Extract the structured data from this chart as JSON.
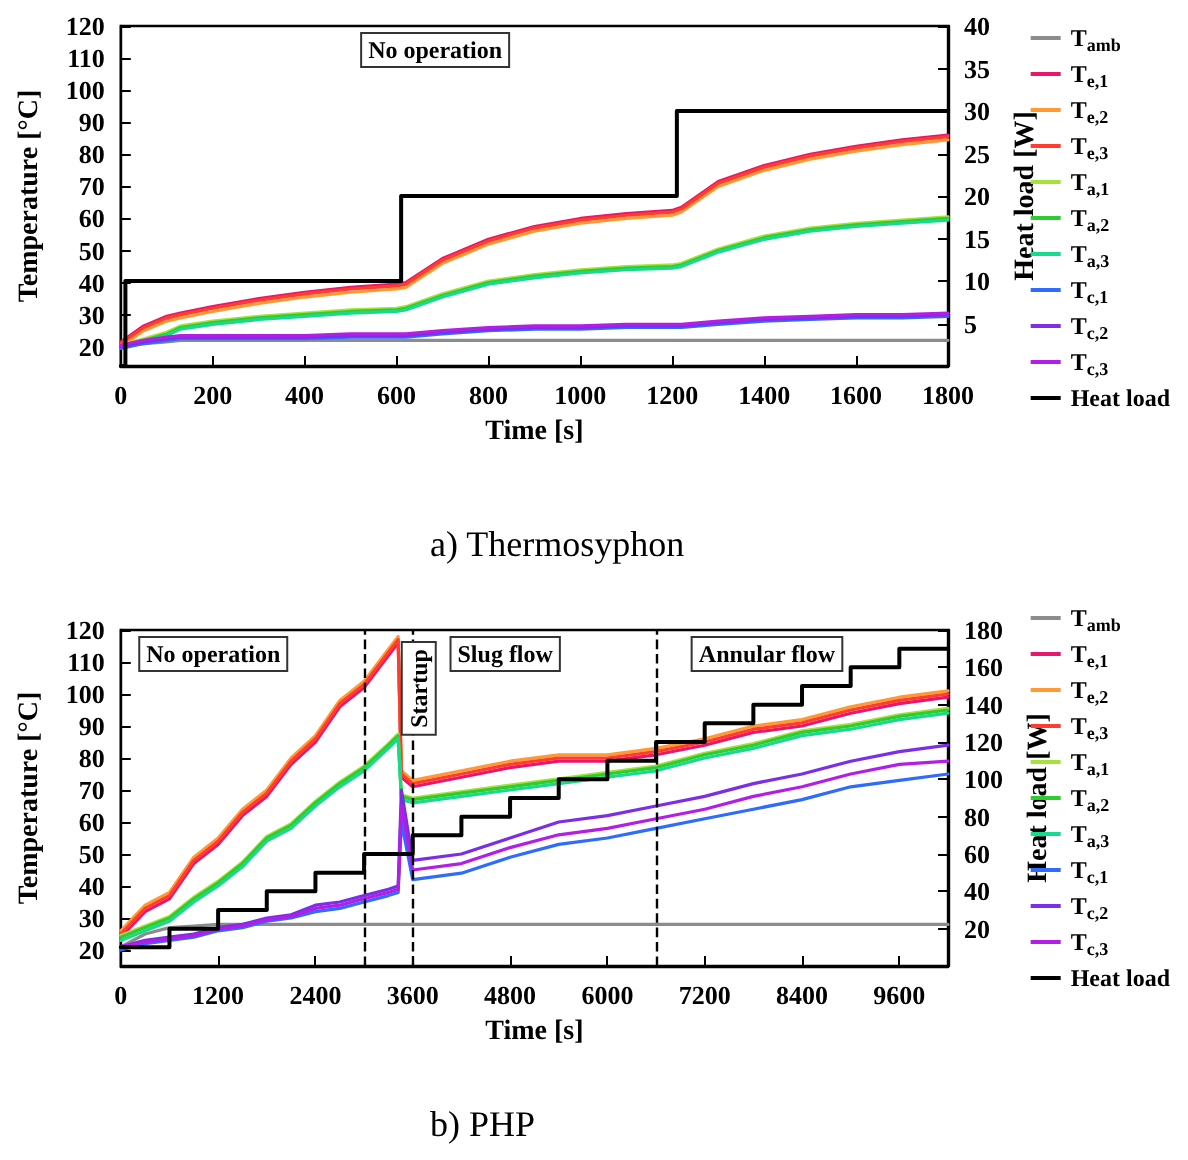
{
  "chart_data": [
    {
      "type": "line",
      "title": "a) Thermosyphon",
      "xlabel": "Time [s]",
      "ylabel": "Temperature [°C]",
      "y2label": "Heat load [W]",
      "xlim": [
        0,
        1800
      ],
      "xticks": [
        0,
        200,
        400,
        600,
        800,
        1000,
        1200,
        1400,
        1600,
        1800
      ],
      "ylim": [
        14,
        120
      ],
      "yticks": [
        20,
        30,
        40,
        50,
        60,
        70,
        80,
        90,
        100,
        110,
        120
      ],
      "y2lim": [
        0,
        40
      ],
      "y2ticks": [
        5,
        10,
        15,
        20,
        25,
        30,
        35,
        40
      ],
      "grid": false,
      "legend": "right",
      "marker": "none",
      "line_style": "solid",
      "annotations": [
        "No operation"
      ],
      "x": [
        0,
        50,
        100,
        130,
        200,
        300,
        400,
        500,
        600,
        620,
        700,
        800,
        900,
        1000,
        1100,
        1200,
        1220,
        1300,
        1400,
        1500,
        1600,
        1700,
        1800
      ],
      "series": [
        {
          "name": "T$_{amb}$",
          "color": "#8c8c8c",
          "values": [
            20,
            21,
            21.5,
            22,
            22,
            22,
            22,
            22,
            22,
            22,
            22,
            22,
            22,
            22,
            22,
            22,
            22,
            22,
            22,
            22,
            22,
            22,
            22
          ]
        },
        {
          "name": "T$_{e,1}$",
          "color": "#e8176b",
          "values": [
            21.5,
            26.5,
            29.5,
            30.5,
            32.5,
            35,
            37,
            38.5,
            39.5,
            40,
            47.5,
            53.5,
            57.5,
            60,
            61.5,
            62.5,
            63.5,
            71.5,
            76.5,
            80,
            82.5,
            84.5,
            86
          ]
        },
        {
          "name": "T$_{e,2}$",
          "color": "#ff9933",
          "values": [
            20,
            25,
            28,
            29,
            31,
            33.5,
            35.5,
            37,
            38,
            38.5,
            46,
            52,
            56,
            58.5,
            60,
            61,
            62,
            70,
            75,
            78.5,
            81,
            83,
            84.5
          ]
        },
        {
          "name": "T$_{e,3}$",
          "color": "#ff3c2e",
          "values": [
            21,
            26,
            29,
            30,
            32,
            34.5,
            36.5,
            38,
            39,
            39.5,
            47,
            53,
            57,
            59.5,
            61,
            62,
            63,
            71,
            76,
            79.5,
            82,
            84,
            85.5
          ]
        },
        {
          "name": "T$_{a,1}$",
          "color": "#a6e23c",
          "values": [
            20.5,
            22.5,
            24.5,
            26.5,
            28,
            29.5,
            30.5,
            31.5,
            32,
            32.5,
            36.5,
            40.5,
            42.5,
            44,
            45,
            45.5,
            46,
            50.5,
            54.5,
            57,
            58.5,
            59.5,
            60.5
          ]
        },
        {
          "name": "T$_{a,2}$",
          "color": "#2ecc2e",
          "values": [
            20,
            22,
            24,
            26,
            27.5,
            29,
            30,
            31,
            31.5,
            32,
            36,
            40,
            42,
            43.5,
            44.5,
            45,
            45.5,
            50,
            54,
            56.5,
            58,
            59,
            60
          ]
        },
        {
          "name": "T$_{a,3}$",
          "color": "#19d98c",
          "values": [
            19.5,
            21.5,
            23.5,
            25.5,
            27,
            28.5,
            29.5,
            30.5,
            31,
            31.5,
            35.5,
            39.5,
            41.5,
            43,
            44,
            44.5,
            45,
            49.5,
            53.5,
            56,
            57.5,
            58.5,
            59.5
          ]
        },
        {
          "name": "T$_{c,1}$",
          "color": "#2e6bff",
          "values": [
            19.5,
            21,
            22,
            22.5,
            22.5,
            22.5,
            22.5,
            23,
            23,
            23,
            24,
            25,
            25.5,
            25.5,
            26,
            26,
            26,
            27,
            28,
            28.5,
            29,
            29,
            29.5
          ]
        },
        {
          "name": "T$_{c,2}$",
          "color": "#7b2ee6",
          "values": [
            20,
            21.5,
            22.5,
            23,
            23,
            23,
            23,
            23.5,
            23.5,
            23.5,
            24.5,
            25.5,
            26,
            26,
            26.5,
            26.5,
            26.5,
            27.5,
            28.5,
            29,
            29.5,
            29.5,
            30
          ]
        },
        {
          "name": "T$_{c,3}$",
          "color": "#b31ee6",
          "values": [
            20.5,
            22,
            23,
            23.5,
            23.5,
            23.5,
            23.5,
            24,
            24,
            24,
            25,
            26,
            26.5,
            26.5,
            27,
            27,
            27,
            28,
            29,
            29.5,
            30,
            30,
            30.5
          ]
        },
        {
          "name": "Heat load",
          "color": "#000000",
          "type": "step",
          "axis": "y2",
          "x": [
            0,
            10,
            610,
            1210,
            1800
          ],
          "values": [
            0,
            10,
            20,
            30,
            30
          ]
        }
      ]
    },
    {
      "type": "line",
      "title": "b) PHP",
      "xlabel": "Time [s]",
      "ylabel": "Temperature [°C]",
      "y2label": "Heat load [W]",
      "xlim": [
        0,
        10200
      ],
      "xticks": [
        0,
        1200,
        2400,
        3600,
        4800,
        6000,
        7200,
        8400,
        9600
      ],
      "ylim": [
        15,
        120
      ],
      "yticks": [
        20,
        30,
        40,
        50,
        60,
        70,
        80,
        90,
        100,
        110,
        120
      ],
      "y2lim": [
        0,
        180
      ],
      "y2ticks": [
        20,
        40,
        60,
        80,
        100,
        120,
        140,
        160,
        180
      ],
      "grid": false,
      "legend": "right",
      "marker": "none",
      "line_style": "solid",
      "ref_lines": [
        {
          "axis": "x",
          "value": 3000,
          "line_style": "dashed"
        },
        {
          "axis": "x",
          "value": 3600,
          "line_style": "dashed"
        },
        {
          "axis": "x",
          "value": 6600,
          "line_style": "dashed"
        }
      ],
      "annotations": [
        "No operation",
        "Startup",
        "Slug flow",
        "Annular flow"
      ],
      "x": [
        0,
        300,
        600,
        900,
        1200,
        1500,
        1800,
        2100,
        2400,
        2700,
        3000,
        3300,
        3420,
        3460,
        3600,
        4200,
        4800,
        5400,
        6000,
        6600,
        7200,
        7800,
        8400,
        9000,
        9600,
        10200
      ],
      "series": [
        {
          "name": "T$_{amb}$",
          "color": "#8c8c8c",
          "values": [
            21,
            25,
            27,
            27.5,
            28,
            28,
            28,
            28,
            28,
            28,
            28,
            28,
            28,
            28,
            28,
            28,
            28,
            28,
            28,
            28,
            28,
            28,
            28,
            28,
            28,
            28
          ]
        },
        {
          "name": "T$_{e,1}$",
          "color": "#e8176b",
          "values": [
            24,
            32,
            36,
            47,
            53,
            62,
            68,
            78,
            85,
            96,
            102,
            112,
            116,
            74,
            71,
            74,
            77,
            79,
            79,
            81,
            84,
            88,
            90,
            94,
            97,
            99
          ]
        },
        {
          "name": "T$_{e,2}$",
          "color": "#ff9933",
          "values": [
            26,
            34,
            38,
            49,
            55,
            64,
            70,
            80,
            87,
            98,
            104,
            114,
            118,
            76,
            73,
            76,
            79,
            81,
            81,
            83,
            86,
            90,
            92,
            96,
            99,
            101
          ]
        },
        {
          "name": "T$_{e,3}$",
          "color": "#ff3c2e",
          "values": [
            25,
            33,
            37,
            48,
            54,
            63,
            69,
            79,
            86,
            97,
            103,
            113,
            117,
            75,
            72,
            75,
            78,
            80,
            80,
            82,
            85,
            89,
            91,
            95,
            98,
            100
          ]
        },
        {
          "name": "T$_{a,1}$",
          "color": "#a6e23c",
          "values": [
            24.5,
            27.5,
            30.5,
            36.5,
            41.5,
            47.5,
            55.5,
            59.5,
            66.5,
            72.5,
            77.5,
            84.5,
            87.5,
            68.5,
            67.5,
            69.5,
            71.5,
            73.5,
            75.5,
            77.5,
            81.5,
            84.5,
            88.5,
            90.5,
            93.5,
            95.5
          ]
        },
        {
          "name": "T$_{a,2}$",
          "color": "#2ecc2e",
          "values": [
            24,
            27,
            30,
            36,
            41,
            47,
            55,
            59,
            66,
            72,
            77,
            84,
            87,
            68,
            67,
            69,
            71,
            73,
            75,
            77,
            81,
            84,
            88,
            90,
            93,
            95
          ]
        },
        {
          "name": "T$_{a,3}$",
          "color": "#19d98c",
          "values": [
            23,
            26,
            29,
            35,
            40,
            46,
            54,
            58,
            65,
            71,
            76,
            83,
            86,
            67,
            66,
            68,
            70,
            72,
            74,
            76,
            80,
            83,
            87,
            89,
            92,
            94
          ]
        },
        {
          "name": "T$_{c,1}$",
          "color": "#2e6bff",
          "values": [
            20,
            22,
            23,
            24,
            26,
            27,
            29,
            30,
            32,
            33,
            35,
            37,
            38,
            60,
            42,
            44,
            49,
            53,
            55,
            58,
            61,
            64,
            67,
            71,
            73,
            75
          ]
        },
        {
          "name": "T$_{c,2}$",
          "color": "#7b2ee6",
          "values": [
            21,
            23,
            24,
            25,
            27,
            28,
            30,
            31,
            34,
            35,
            37,
            39,
            40,
            70,
            48,
            50,
            55,
            60,
            62,
            65,
            68,
            72,
            75,
            79,
            82,
            84
          ]
        },
        {
          "name": "T$_{c,3}$",
          "color": "#b31ee6",
          "values": [
            21,
            22.5,
            23.5,
            24.5,
            26.5,
            27.5,
            29.5,
            30.5,
            33,
            34,
            36,
            38,
            39,
            65,
            45,
            47,
            52,
            56,
            58,
            61,
            64,
            68,
            71,
            75,
            78,
            79
          ]
        },
        {
          "name": "Heat load",
          "color": "#000000",
          "type": "step",
          "axis": "y2",
          "x": [
            0,
            600,
            1200,
            1800,
            2400,
            3000,
            3600,
            4200,
            4800,
            5400,
            6000,
            6600,
            7200,
            7800,
            8400,
            9000,
            9600,
            10200
          ],
          "values": [
            10,
            20,
            30,
            40,
            50,
            60,
            70,
            80,
            90,
            100,
            110,
            120,
            130,
            140,
            150,
            160,
            170,
            170
          ]
        }
      ]
    }
  ]
}
